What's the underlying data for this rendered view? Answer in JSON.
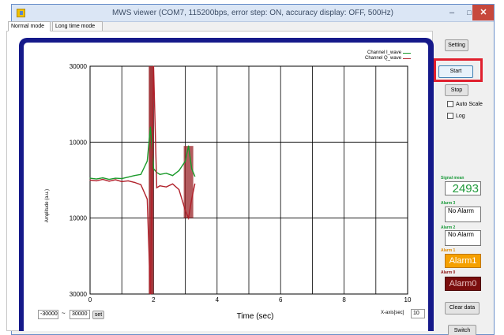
{
  "window": {
    "title": "MWS viewer (COM7, 115200bps, error step: ON, accuracy display: OFF, 500Hz)",
    "minimize": "–",
    "maximize": "□",
    "close": "✕"
  },
  "tabs": [
    "Normal mode",
    "Long time mode"
  ],
  "plot": {
    "xlabel": "Time (sec)",
    "ylabel": "Amplitude (a.u.)",
    "legend": [
      {
        "label": "Channel I_wave",
        "color": "#1a9a2a"
      },
      {
        "label": "Channel Q_wave",
        "color": "#b0202a"
      }
    ]
  },
  "chart_data": {
    "type": "line",
    "title": "",
    "xlabel": "Time (sec)",
    "ylabel": "Amplitude (a.u.)",
    "xlim": [
      0,
      10
    ],
    "ylim": [
      -30000,
      30000
    ],
    "x_ticks": [
      0,
      2,
      4,
      6,
      8,
      10
    ],
    "y_tick_labels": [
      "30000",
      "10000",
      "10000",
      "30000"
    ],
    "y_tick_values": [
      30000,
      10000,
      -10000,
      -30000
    ],
    "grid": true,
    "legend_position": "top-right",
    "series": [
      {
        "name": "Channel I_wave",
        "color": "#1a9a2a",
        "x": [
          0,
          0.2,
          0.4,
          0.6,
          0.8,
          1.0,
          1.2,
          1.4,
          1.6,
          1.8,
          1.9,
          2.0,
          2.1,
          2.2,
          2.4,
          2.6,
          2.8,
          3.0,
          3.1,
          3.2,
          3.3
        ],
        "y": [
          500,
          300,
          600,
          200,
          500,
          400,
          800,
          1200,
          1500,
          5000,
          14000,
          3000,
          2000,
          1500,
          1800,
          1200,
          2500,
          5000,
          9000,
          3000,
          1000
        ]
      },
      {
        "name": "Channel Q_wave",
        "color": "#b0202a",
        "x": [
          0,
          0.2,
          0.4,
          0.6,
          0.8,
          1.0,
          1.2,
          1.4,
          1.6,
          1.8,
          1.9,
          2.0,
          2.1,
          2.2,
          2.4,
          2.6,
          2.8,
          3.0,
          3.1,
          3.2,
          3.3
        ],
        "y": [
          0,
          -200,
          200,
          -300,
          100,
          -400,
          -200,
          -600,
          -1200,
          -5000,
          -30000,
          30000,
          -2000,
          -1500,
          -1800,
          -1000,
          -2500,
          -8000,
          -10000,
          -5000,
          -1000
        ]
      }
    ]
  },
  "x_range": {
    "min": "-30000",
    "sep": "~",
    "max": "30000",
    "set": "set"
  },
  "x_axis": {
    "label": "X-axis[sec]",
    "value": "10"
  },
  "controls": {
    "setting": "Setting",
    "start": "Start",
    "stop": "Stop",
    "auto_scale": "Auto Scale",
    "log": "Log",
    "clear": "Clear data",
    "switch": "Switch"
  },
  "signal": {
    "label": "Signal mean",
    "value": "2493"
  },
  "alarms": [
    {
      "label": "Alarm 3",
      "value": "No Alarm"
    },
    {
      "label": "Alarm 2",
      "value": "No Alarm"
    },
    {
      "label": "Alarm 1",
      "value": "Alarm1"
    },
    {
      "label": "Alarm 0",
      "value": "Alarm0"
    }
  ]
}
